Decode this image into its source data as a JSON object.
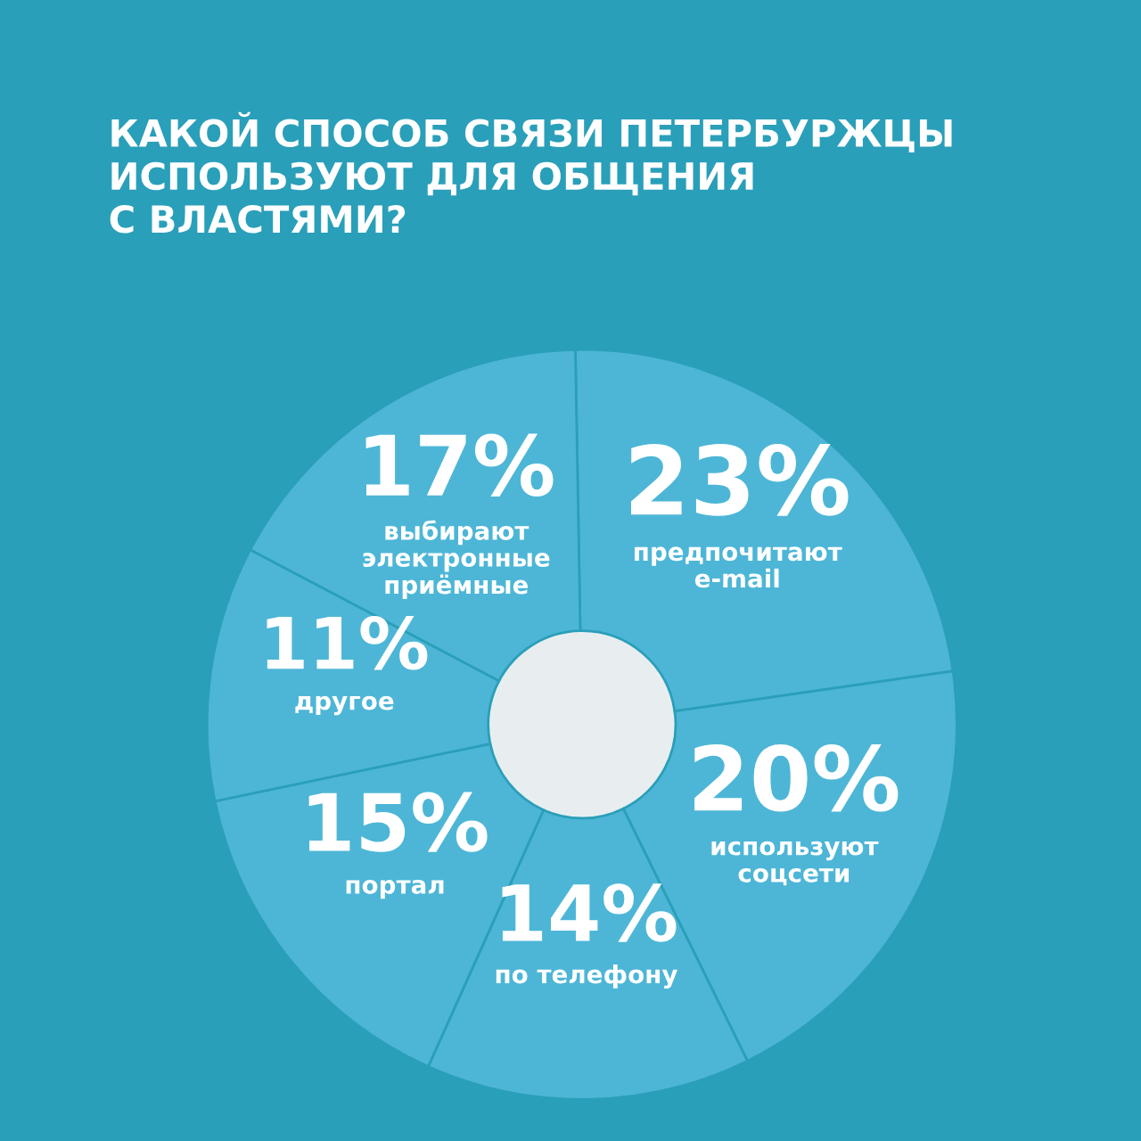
{
  "chart_data": {
    "type": "donut",
    "title": "КАКОЙ СПОСОБ СВЯЗИ ПЕТЕРБУРЖЦЫ\nИСПОЛЬЗУЮТ ДЛЯ ОБЩЕНИЯ\nС ВЛАСТЯМИ?",
    "categories": [
      "предпочитают\ne-mail",
      "используют\nсоцсети",
      "по телефону",
      "портал",
      "другое",
      "выбирают\nэлектронные\nприёмные"
    ],
    "values": [
      23,
      20,
      14,
      15,
      11,
      17
    ],
    "colors": [
      "#4db6d6",
      "#4db6d6",
      "#4db6d6",
      "#4db6d6",
      "#4db6d6",
      "#4db6d6"
    ],
    "value_labels": [
      "23%",
      "20%",
      "14%",
      "15%",
      "11%",
      "17%"
    ]
  }
}
